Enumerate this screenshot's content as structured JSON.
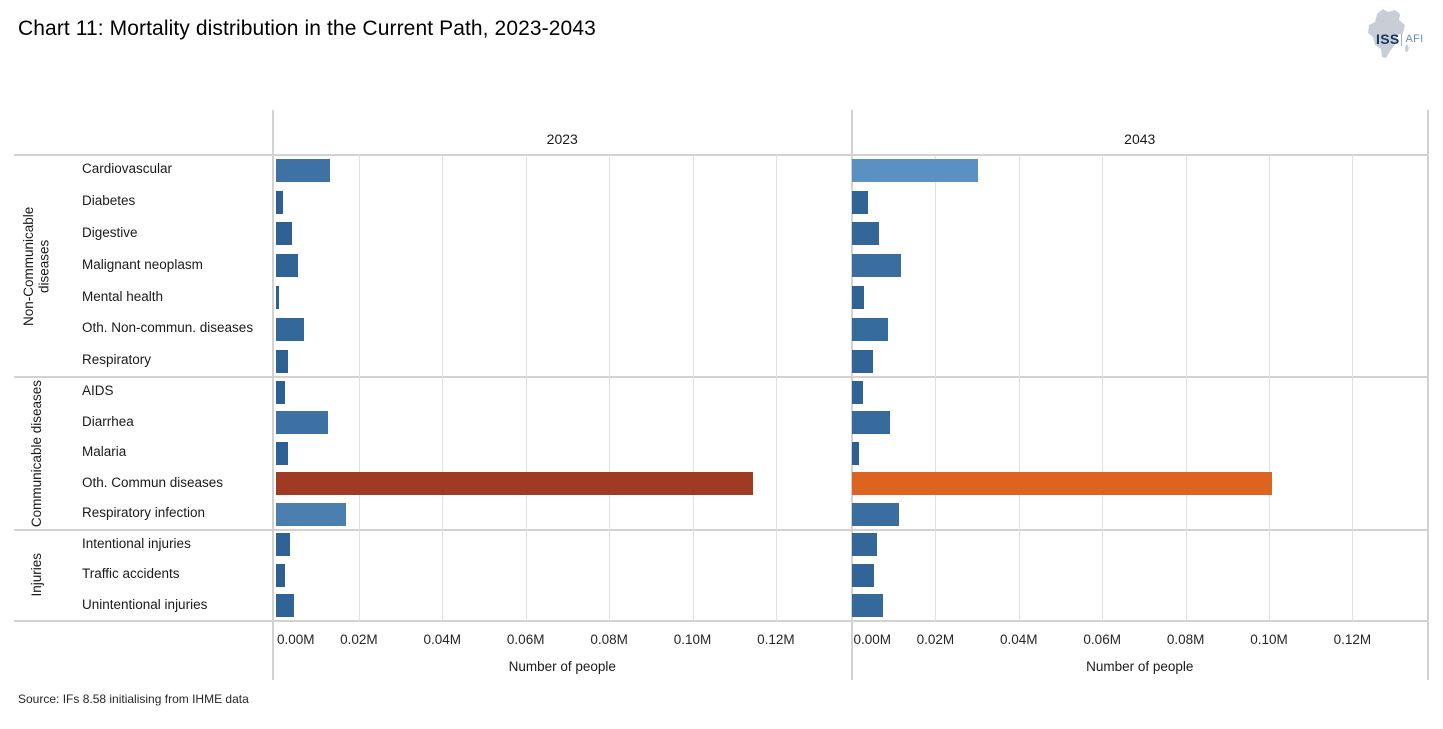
{
  "title": "Chart 11: Mortality distribution in the Current Path, 2023-2043",
  "logo": {
    "iss": "ISS",
    "afi": "AFI"
  },
  "source": "Source: IFs 8.58 initialising from IHME data",
  "chart_data": {
    "type": "bar",
    "orientation": "horizontal",
    "xlabel": "Number of people",
    "x_ticks": [
      "0.00M",
      "0.02M",
      "0.04M",
      "0.06M",
      "0.08M",
      "0.10M",
      "0.12M"
    ],
    "x_tick_step_value": 0.02,
    "x_max": 0.138,
    "grid": true,
    "panels": [
      "2023",
      "2043"
    ],
    "groups": [
      {
        "name": "Non-Communicable diseases",
        "categories": [
          "Cardiovascular",
          "Diabetes",
          "Digestive",
          "Malignant neoplasm",
          "Mental health",
          "Oth. Non-commun. diseases",
          "Respiratory"
        ]
      },
      {
        "name": "Communicable diseases",
        "categories": [
          "AIDS",
          "Diarrhea",
          "Malaria",
          "Oth. Commun diseases",
          "Respiratory infection"
        ]
      },
      {
        "name": "Injuries",
        "categories": [
          "Intentional injuries",
          "Traffic accidents",
          "Unintentional injuries"
        ]
      }
    ],
    "unit": "millions of people",
    "series": [
      {
        "name": "2023",
        "values": [
          0.013,
          0.0017,
          0.004,
          0.0055,
          0.0009,
          0.0068,
          0.003,
          0.0023,
          0.0127,
          0.003,
          0.1146,
          0.017,
          0.0034,
          0.0022,
          0.0044
        ],
        "colors": [
          "#3e72a5",
          "#2d5f92",
          "#2e6093",
          "#306396",
          "#2d5f92",
          "#346898",
          "#2e6093",
          "#2d5f92",
          "#3d70a3",
          "#2e6093",
          "#9e3b22",
          "#4a7fb0",
          "#2f6295",
          "#2d5f92",
          "#306396"
        ]
      },
      {
        "name": "2043",
        "values": [
          0.0302,
          0.0038,
          0.0064,
          0.0118,
          0.0028,
          0.0086,
          0.005,
          0.0026,
          0.009,
          0.0016,
          0.1006,
          0.0112,
          0.006,
          0.0052,
          0.0074
        ],
        "colors": [
          "#5b91c2",
          "#306396",
          "#336798",
          "#3a6da0",
          "#2f6295",
          "#356a9c",
          "#326597",
          "#2f6295",
          "#366a9d",
          "#2d5f92",
          "#dd6420",
          "#3a6da0",
          "#336798",
          "#326597",
          "#35699b"
        ]
      }
    ]
  }
}
